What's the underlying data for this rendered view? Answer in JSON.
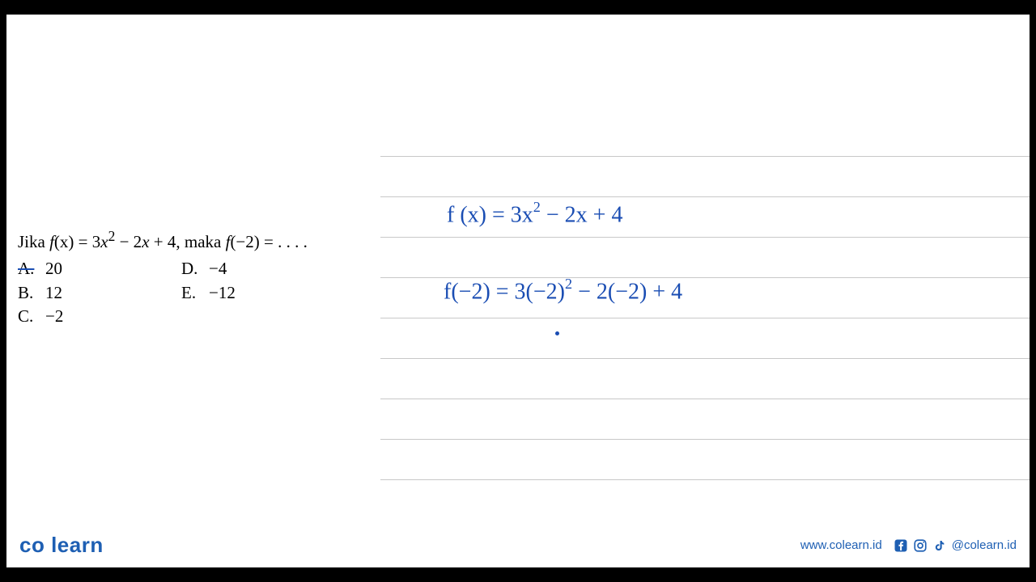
{
  "question": {
    "prefix": "Jika ",
    "func": "f",
    "funcArg": "(x)",
    "eq": " = 3",
    "var1": "x",
    "exp": "2",
    "rest": " − 2",
    "var2": "x",
    "rest2": " + 4, maka ",
    "func2": "f",
    "funcArg2": "(−2)",
    "tail": " = . . . ."
  },
  "options": {
    "A": {
      "label": "A.",
      "value": "20"
    },
    "B": {
      "label": "B.",
      "value": "12"
    },
    "C": {
      "label": "C.",
      "value": "−2"
    },
    "D": {
      "label": "D.",
      "value": "−4"
    },
    "E": {
      "label": "E.",
      "value": "−12"
    }
  },
  "worklines": {
    "line1": {
      "p1": "f (x)  =  3x",
      "exp1": "2",
      "p2": " − 2x + 4"
    },
    "line2": {
      "p1": "f(−2)  =  3(−2)",
      "exp1": "2",
      "p2": " − 2(−2) + 4"
    }
  },
  "ruledLines": {
    "positions": [
      25,
      75,
      125,
      175,
      225,
      275,
      325,
      375,
      425
    ],
    "color": "#c8c8c8"
  },
  "colors": {
    "handwriting": "#1a4db3",
    "brand": "#1e5fb3",
    "text": "#000000",
    "background": "#ffffff",
    "frame": "#000000"
  },
  "footer": {
    "logo": "co learn",
    "url": "www.colearn.id",
    "handle": "@colearn.id"
  }
}
